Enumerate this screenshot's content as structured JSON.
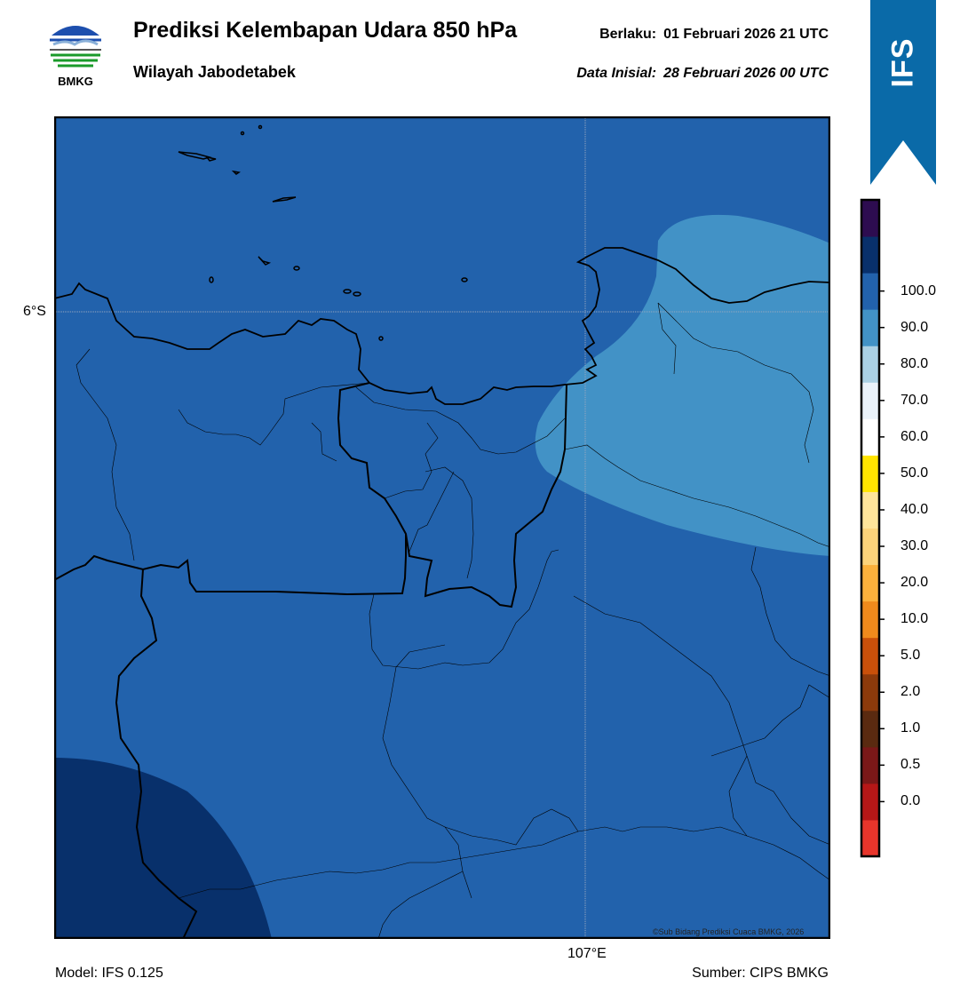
{
  "header": {
    "logo_text": "BMKG",
    "title": "Prediksi Kelembapan Udara 850 hPa",
    "subtitle": "Wilayah Jabodetabek",
    "valid_label": "Berlaku:",
    "valid_value": "01 Februari 2026 21 UTC",
    "init_label": "Data Inisial:",
    "init_value": "28 Februari 2026 00 UTC"
  },
  "banner": {
    "text": "IFS",
    "color": "#0a6aa8"
  },
  "map": {
    "lat_label": "6°S",
    "lon_label": "107°E",
    "credit": "©Sub Bidang Prediksi Cuaca BMKG, 2026",
    "field_colors": {
      "dominant": "#2262ac",
      "east_lower": "#4292c6",
      "southwest_higher": "#08306b"
    }
  },
  "colorbar": {
    "ticks": [
      "0.0",
      "0.5",
      "1.0",
      "2.0",
      "5.0",
      "10.0",
      "20.0",
      "30.0",
      "40.0",
      "50.0",
      "60.0",
      "70.0",
      "80.0",
      "90.0",
      "100.0"
    ],
    "colors": [
      "#e8352b",
      "#b51717",
      "#7a1818",
      "#5a2a10",
      "#8c3a0b",
      "#c9500a",
      "#f08a1c",
      "#fbb13c",
      "#fcd37a",
      "#fee49a",
      "#ffe400",
      "#ffffff",
      "#eaf2fa",
      "#aad0e4",
      "#4292c6",
      "#2262ac",
      "#08306b",
      "#2d0c50"
    ]
  },
  "footer": {
    "model": "Model: IFS 0.125",
    "source": "Sumber: CIPS BMKG"
  }
}
